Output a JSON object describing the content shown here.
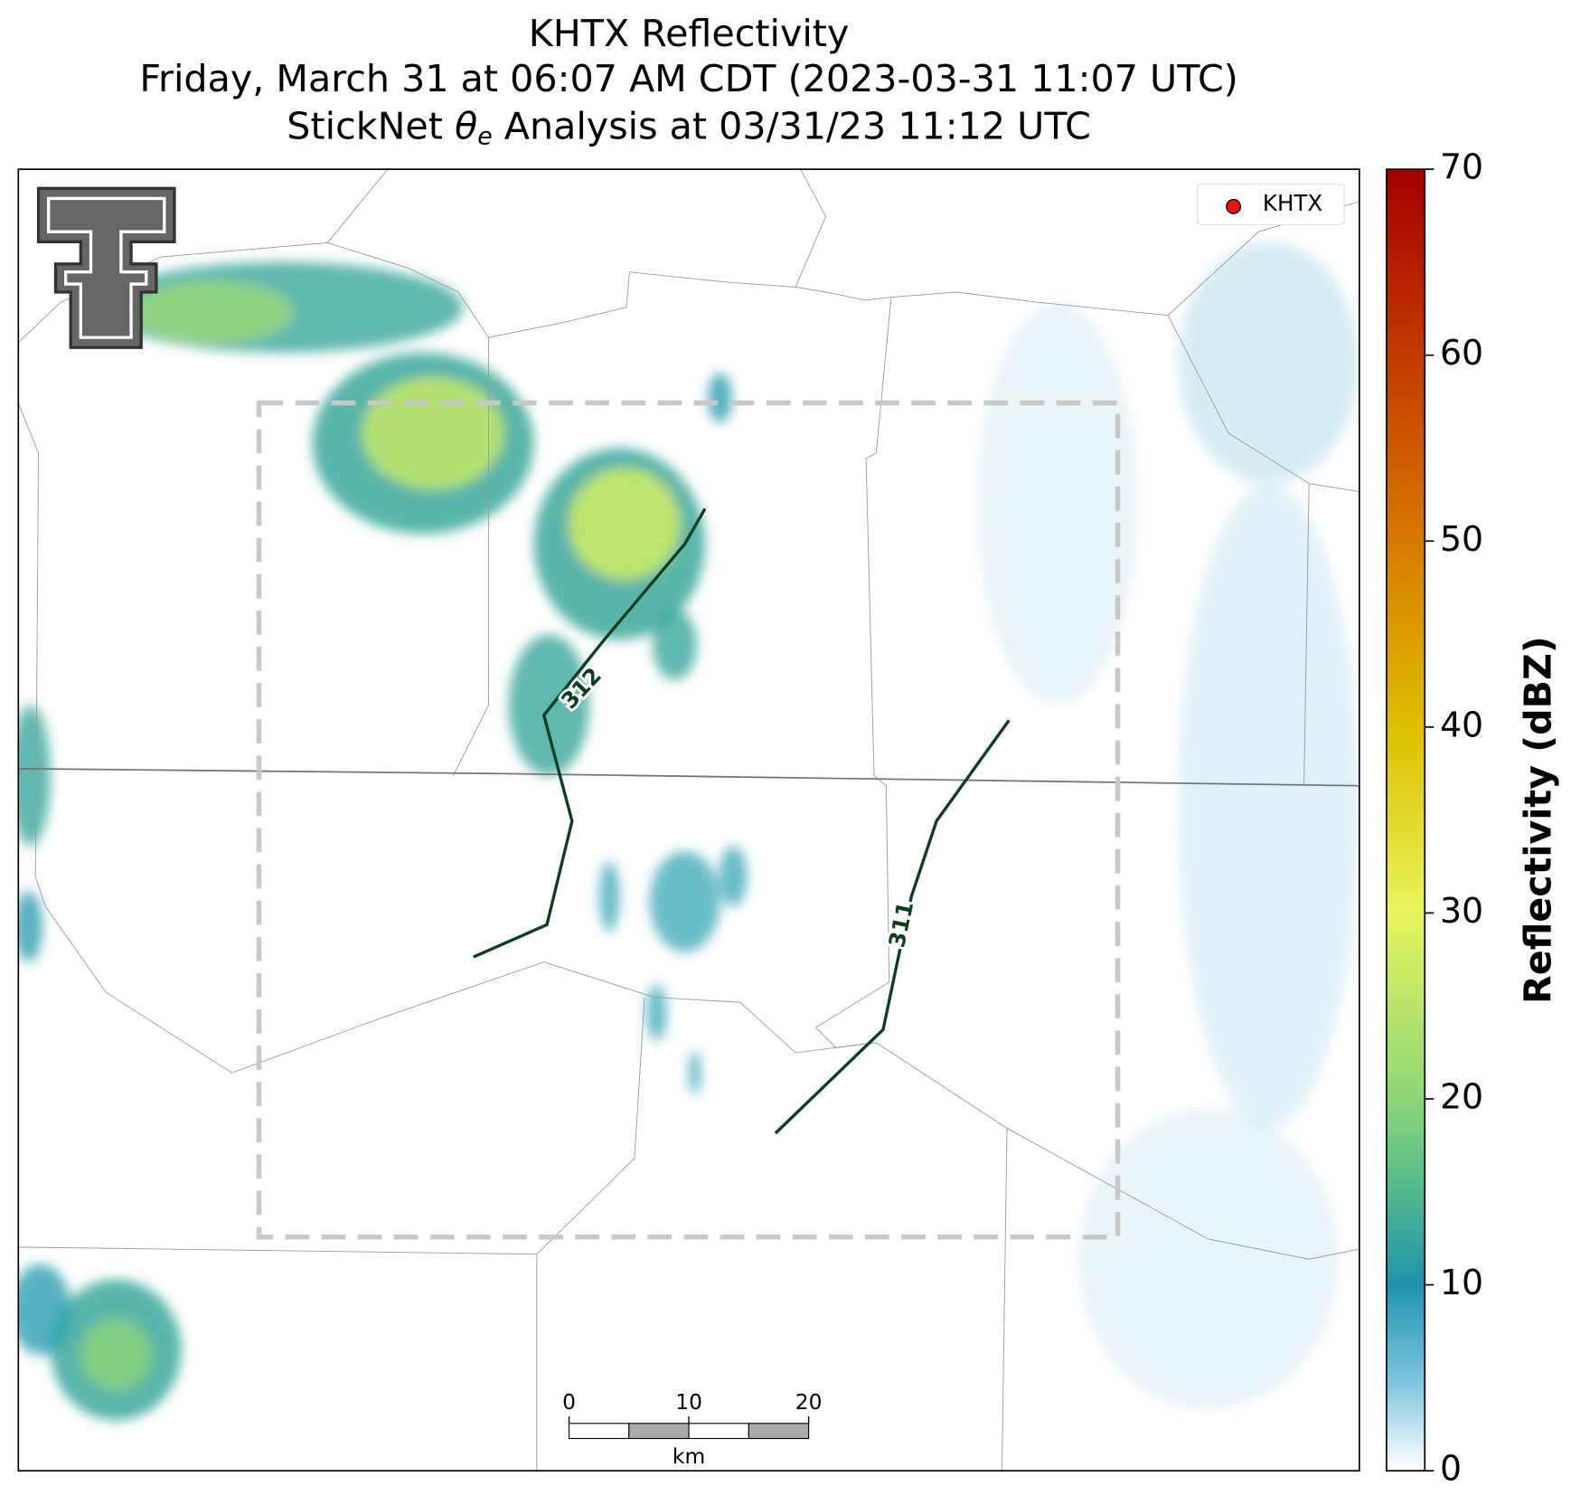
{
  "title": {
    "line1": "KHTX Reflectivity",
    "line2": "Friday, March 31 at 06:07 AM CDT (2023-03-31 11:07 UTC)",
    "line3": {
      "prefix": "StickNet",
      "symbol": "θ",
      "subscript": "e",
      "suffix": "Analysis at 03/31/23 11:12 UTC"
    }
  },
  "legend": {
    "label": "KHTX"
  },
  "colorbar": {
    "label": "Reflectivity (dBZ)",
    "lim": [
      0,
      70
    ],
    "ticks": [
      0,
      10,
      20,
      30,
      40,
      50,
      60,
      70
    ]
  },
  "scale_bar": {
    "lim": [
      0,
      20
    ],
    "ticks": [
      0,
      10,
      20
    ],
    "unit": "km"
  },
  "contours": [
    {
      "label": "312"
    },
    {
      "label": "311"
    }
  ]
}
